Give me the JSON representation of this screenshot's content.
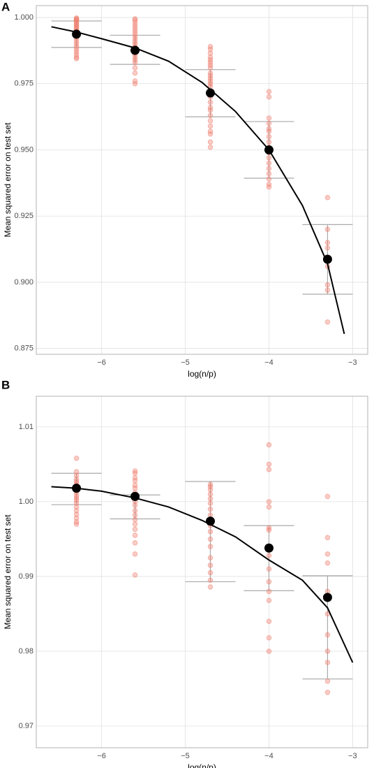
{
  "chart_data": [
    {
      "type": "scatter",
      "panel_label": "A",
      "xlabel": "log(n/p)",
      "ylabel": "Mean squared error on test set",
      "xlim": [
        -6.78,
        -2.82
      ],
      "ylim": [
        0.8728,
        1.0045
      ],
      "xticks": [
        {
          "value": -6,
          "label": "−6"
        },
        {
          "value": -5,
          "label": "−5"
        },
        {
          "value": -4,
          "label": "−4"
        },
        {
          "value": -3,
          "label": "−3"
        }
      ],
      "yticks": [
        0.875,
        {
          "value": 0.9,
          "label": "0.900"
        },
        0.925,
        {
          "value": 0.95,
          "label": "0.950"
        },
        0.975,
        {
          "value": 1,
          "label": "1.000"
        }
      ],
      "grid": true,
      "points": {
        "color": "#f08070",
        "x": [
          -6.3,
          -6.3,
          -6.3,
          -6.3,
          -6.3,
          -6.3,
          -6.3,
          -6.3,
          -6.3,
          -6.3,
          -6.3,
          -6.3,
          -6.3,
          -6.3,
          -6.3,
          -6.3,
          -6.3,
          -6.3,
          -6.3,
          -6.3,
          -6.3,
          -6.3,
          -6.3,
          -5.6,
          -5.6,
          -5.6,
          -5.6,
          -5.6,
          -5.6,
          -5.6,
          -5.6,
          -5.6,
          -5.6,
          -5.6,
          -5.6,
          -5.6,
          -5.6,
          -5.6,
          -5.6,
          -5.6,
          -5.6,
          -5.6,
          -5.6,
          -5.6,
          -5.6,
          -4.7,
          -4.7,
          -4.7,
          -4.7,
          -4.7,
          -4.7,
          -4.7,
          -4.7,
          -4.7,
          -4.7,
          -4.7,
          -4.7,
          -4.7,
          -4.7,
          -4.7,
          -4.7,
          -4.7,
          -4.7,
          -4.7,
          -4.7,
          -4.7,
          -4.7,
          -4.7,
          -4.7,
          -4.7,
          -4.7,
          -4.0,
          -4.0,
          -4.0,
          -4.0,
          -4.0,
          -4.0,
          -4.0,
          -4.0,
          -4.0,
          -4.0,
          -4.0,
          -4.0,
          -4.0,
          -4.0,
          -4.0,
          -4.0,
          -4.0,
          -3.3,
          -3.3,
          -3.3,
          -3.3,
          -3.3,
          -3.3,
          -3.3,
          -3.3,
          -3.3
        ],
        "y": [
          0.9998,
          0.9995,
          0.9992,
          0.999,
          0.9985,
          0.998,
          0.9975,
          0.997,
          0.9965,
          0.996,
          0.9955,
          0.995,
          0.994,
          0.993,
          0.992,
          0.991,
          0.99,
          0.989,
          0.988,
          0.987,
          0.986,
          0.985,
          0.9845,
          0.9995,
          0.999,
          0.998,
          0.997,
          0.996,
          0.995,
          0.994,
          0.993,
          0.992,
          0.991,
          0.99,
          0.989,
          0.988,
          0.987,
          0.986,
          0.985,
          0.984,
          0.983,
          0.981,
          0.979,
          0.976,
          0.975,
          0.989,
          0.988,
          0.9865,
          0.985,
          0.984,
          0.983,
          0.982,
          0.981,
          0.979,
          0.978,
          0.977,
          0.976,
          0.975,
          0.974,
          0.972,
          0.97,
          0.968,
          0.966,
          0.965,
          0.963,
          0.961,
          0.959,
          0.957,
          0.956,
          0.953,
          0.951,
          0.972,
          0.97,
          0.962,
          0.96,
          0.958,
          0.957,
          0.955,
          0.953,
          0.951,
          0.949,
          0.947,
          0.945,
          0.943,
          0.941,
          0.939,
          0.937,
          0.936,
          0.932,
          0.92,
          0.915,
          0.913,
          0.909,
          0.906,
          0.899,
          0.897,
          0.885
        ]
      },
      "means": {
        "color": "#000000",
        "x": [
          -6.3,
          -5.6,
          -4.7,
          -4.0,
          -3.3
        ],
        "y": [
          0.9937,
          0.9876,
          0.9715,
          0.95,
          0.9087
        ]
      },
      "error_bars": {
        "color": "#aaaaaa",
        "x": [
          -6.3,
          -5.6,
          -4.7,
          -4.0,
          -3.3
        ],
        "low": [
          0.9887,
          0.9823,
          0.9625,
          0.9393,
          0.8955
        ],
        "high": [
          0.9987,
          0.9933,
          0.9803,
          0.9607,
          0.9218
        ]
      },
      "curve": {
        "color": "#000000",
        "x": [
          -6.6,
          -6.3,
          -6.0,
          -5.6,
          -5.2,
          -4.8,
          -4.4,
          -4.0,
          -3.6,
          -3.3,
          -3.1
        ],
        "y": [
          0.9965,
          0.9945,
          0.992,
          0.9885,
          0.9835,
          0.9755,
          0.9645,
          0.95,
          0.929,
          0.907,
          0.8805
        ]
      }
    },
    {
      "type": "scatter",
      "panel_label": "B",
      "xlabel": "log(n/p)",
      "ylabel": "Mean squared error on test set",
      "xlim": [
        -6.78,
        -2.82
      ],
      "ylim": [
        0.9671,
        1.0141
      ],
      "xticks": [
        {
          "value": -6,
          "label": "−6"
        },
        {
          "value": -5,
          "label": "−5"
        },
        {
          "value": -4,
          "label": "−4"
        },
        {
          "value": -3,
          "label": "−3"
        }
      ],
      "yticks": [
        0.97,
        0.98,
        0.99,
        {
          "value": 1,
          "label": "1.00"
        },
        1.01
      ],
      "grid": true,
      "points": {
        "color": "#f08070",
        "x": [
          -6.3,
          -6.3,
          -6.3,
          -6.3,
          -6.3,
          -6.3,
          -6.3,
          -6.3,
          -6.3,
          -6.3,
          -6.3,
          -6.3,
          -6.3,
          -6.3,
          -6.3,
          -6.3,
          -6.3,
          -6.3,
          -6.3,
          -6.3,
          -5.6,
          -5.6,
          -5.6,
          -5.6,
          -5.6,
          -5.6,
          -5.6,
          -5.6,
          -5.6,
          -5.6,
          -5.6,
          -5.6,
          -5.6,
          -5.6,
          -5.6,
          -5.6,
          -5.6,
          -5.6,
          -5.6,
          -4.7,
          -4.7,
          -4.7,
          -4.7,
          -4.7,
          -4.7,
          -4.7,
          -4.7,
          -4.7,
          -4.7,
          -4.7,
          -4.7,
          -4.7,
          -4.7,
          -4.7,
          -4.7,
          -4.7,
          -4.7,
          -4.0,
          -4.0,
          -4.0,
          -4.0,
          -4.0,
          -4.0,
          -4.0,
          -4.0,
          -4.0,
          -4.0,
          -4.0,
          -4.0,
          -4.0,
          -4.0,
          -4.0,
          -4.0,
          -3.3,
          -3.3,
          -3.3,
          -3.3,
          -3.3,
          -3.3,
          -3.3,
          -3.3,
          -3.3,
          -3.3,
          -3.3,
          -3.3
        ],
        "y": [
          1.0058,
          1.004,
          1.0035,
          1.003,
          1.0027,
          1.0024,
          1.0021,
          1.0018,
          1.0015,
          1.0012,
          1.0008,
          1.0005,
          1.0002,
          0.9998,
          0.9993,
          0.9988,
          0.9983,
          0.9978,
          0.9973,
          0.997,
          1.0041,
          1.0038,
          1.0032,
          1.0028,
          1.0022,
          1.0018,
          1.0012,
          1.0006,
          1.0,
          0.9995,
          0.9988,
          0.9982,
          0.9976,
          0.997,
          0.9963,
          0.9955,
          0.9945,
          0.993,
          0.9902,
          1.0023,
          1.002,
          1.0016,
          1.001,
          1.0004,
          0.9998,
          0.999,
          0.9982,
          0.9975,
          0.9968,
          0.996,
          0.995,
          0.994,
          0.9925,
          0.9915,
          0.9905,
          0.9895,
          0.9886,
          1.0076,
          1.005,
          1.0043,
          1.0,
          0.9993,
          0.9965,
          0.9962,
          0.994,
          0.9928,
          0.991,
          0.9893,
          0.988,
          0.9868,
          0.984,
          0.9818,
          0.98,
          1.0007,
          0.9952,
          0.993,
          0.9918,
          0.988,
          0.9872,
          0.985,
          0.9822,
          0.98,
          0.9785,
          0.976,
          0.9745
        ]
      },
      "means": {
        "color": "#000000",
        "x": [
          -6.3,
          -5.6,
          -4.7,
          -4.0,
          -3.3
        ],
        "y": [
          1.0018,
          1.0007,
          0.9974,
          0.9938,
          0.9872
        ]
      },
      "error_bars": {
        "color": "#aaaaaa",
        "x": [
          -6.3,
          -5.6,
          -4.7,
          -4.0,
          -3.3
        ],
        "low": [
          0.9996,
          0.9977,
          0.9893,
          0.9881,
          0.9763
        ],
        "high": [
          1.0038,
          1.0009,
          1.0027,
          0.9968,
          0.9901
        ]
      },
      "curve": {
        "color": "#000000",
        "x": [
          -6.6,
          -6.3,
          -6.0,
          -5.6,
          -5.2,
          -4.8,
          -4.4,
          -4.0,
          -3.6,
          -3.3,
          -3.0
        ],
        "y": [
          1.002,
          1.0018,
          1.0014,
          1.0005,
          0.9993,
          0.9975,
          0.9953,
          0.9922,
          0.9895,
          0.9858,
          0.9785
        ]
      }
    }
  ]
}
